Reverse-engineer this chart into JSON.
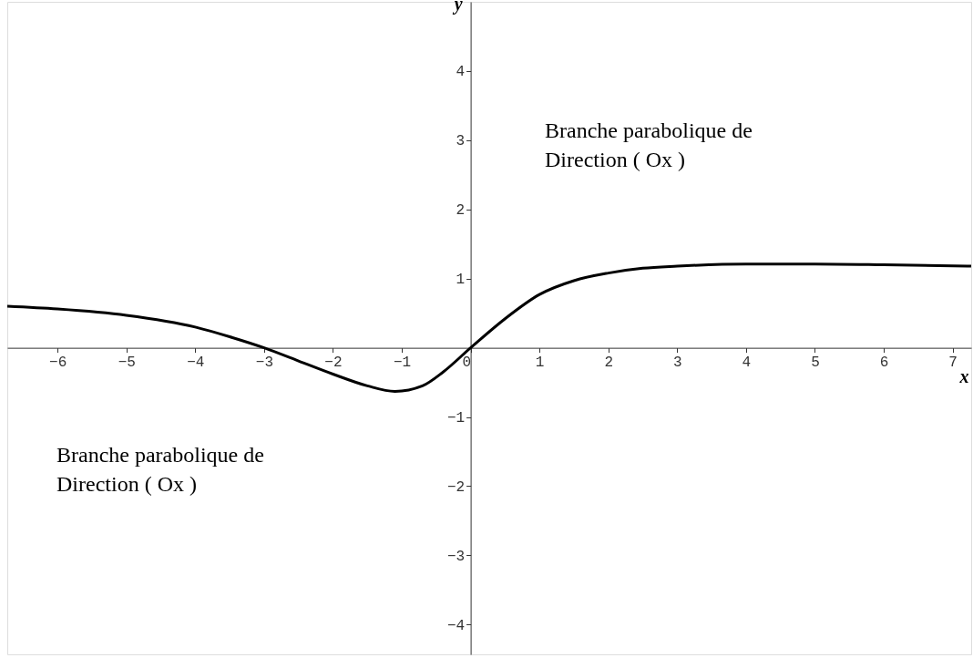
{
  "chart_data": {
    "type": "line",
    "xlabel": "x",
    "ylabel": "y",
    "x": [
      -6.73,
      -6,
      -5,
      -4,
      -3.5,
      -3,
      -2.5,
      -2,
      -1.5,
      -1.1,
      -0.7,
      -0.4,
      0,
      0.5,
      1,
      1.5,
      2,
      2.5,
      3,
      4,
      5,
      6,
      7.27
    ],
    "series": [
      {
        "color": "#000000",
        "values": [
          0.6,
          0.56,
          0.47,
          0.3,
          0.16,
          0,
          -0.19,
          -0.38,
          -0.55,
          -0.63,
          -0.55,
          -0.35,
          0,
          0.42,
          0.77,
          0.97,
          1.08,
          1.15,
          1.18,
          1.21,
          1.21,
          1.2,
          1.18
        ]
      }
    ],
    "xlim": [
      -6.73,
      7.27
    ],
    "ylim": [
      -4.43,
      5.0
    ],
    "xticks": [
      -6,
      -5,
      -4,
      -3,
      -2,
      -1,
      0,
      1,
      2,
      3,
      4,
      5,
      6,
      7
    ],
    "yticks": [
      -4,
      -3,
      -2,
      -1,
      1,
      2,
      3,
      4
    ],
    "grid": false,
    "marker": "none",
    "line_style": "solid",
    "annotations": [
      "Branche parabolique de\nDirection ( Ox )",
      "Branche parabolique de\nDirection ( Ox )"
    ]
  }
}
